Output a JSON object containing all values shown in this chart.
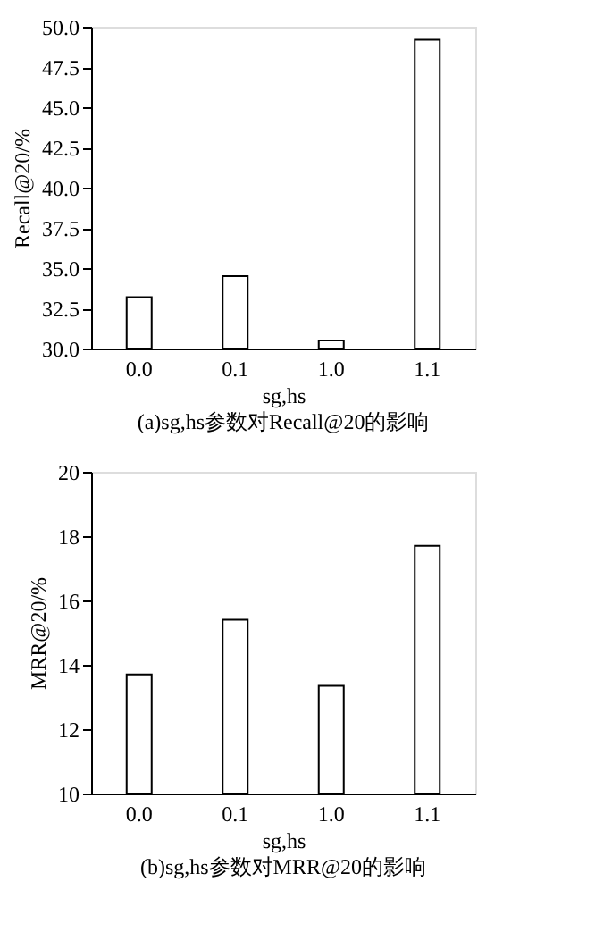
{
  "chart_data": [
    {
      "type": "bar",
      "categories": [
        "0.0",
        "0.1",
        "1.0",
        "1.1"
      ],
      "values": [
        33.2,
        34.5,
        30.5,
        49.2
      ],
      "color": "#ffffff",
      "xlabel": "sg,hs",
      "ylabel": "Recall@20/%",
      "ylim": [
        30.0,
        50.0
      ],
      "yticks": [
        {
          "value": 30,
          "label": "30.0"
        },
        {
          "value": 32.5,
          "label": "32.5"
        },
        {
          "value": 35,
          "label": "35.0"
        },
        {
          "value": 37.5,
          "label": "37.5"
        },
        {
          "value": 40,
          "label": "40.0"
        },
        {
          "value": 42.5,
          "label": "42.5"
        },
        {
          "value": 45,
          "label": "45.0"
        },
        {
          "value": 47.5,
          "label": "47.5"
        },
        {
          "value": 50,
          "label": "50.0"
        }
      ],
      "grid": false,
      "annotations": [
        "(a)sg,hs参数对Recall@20的影响"
      ]
    },
    {
      "type": "bar",
      "categories": [
        "0.0",
        "0.1",
        "1.0",
        "1.1"
      ],
      "values": [
        13.7,
        15.4,
        13.35,
        17.7
      ],
      "color": "#ffffff",
      "xlabel": "sg,hs",
      "ylabel": "MRR@20/%",
      "ylim": [
        10,
        20
      ],
      "yticks": [
        10,
        12,
        14,
        16,
        18,
        20
      ],
      "grid": false,
      "annotations": [
        "(b)sg,hs参数对MRR@20的影响"
      ]
    }
  ]
}
